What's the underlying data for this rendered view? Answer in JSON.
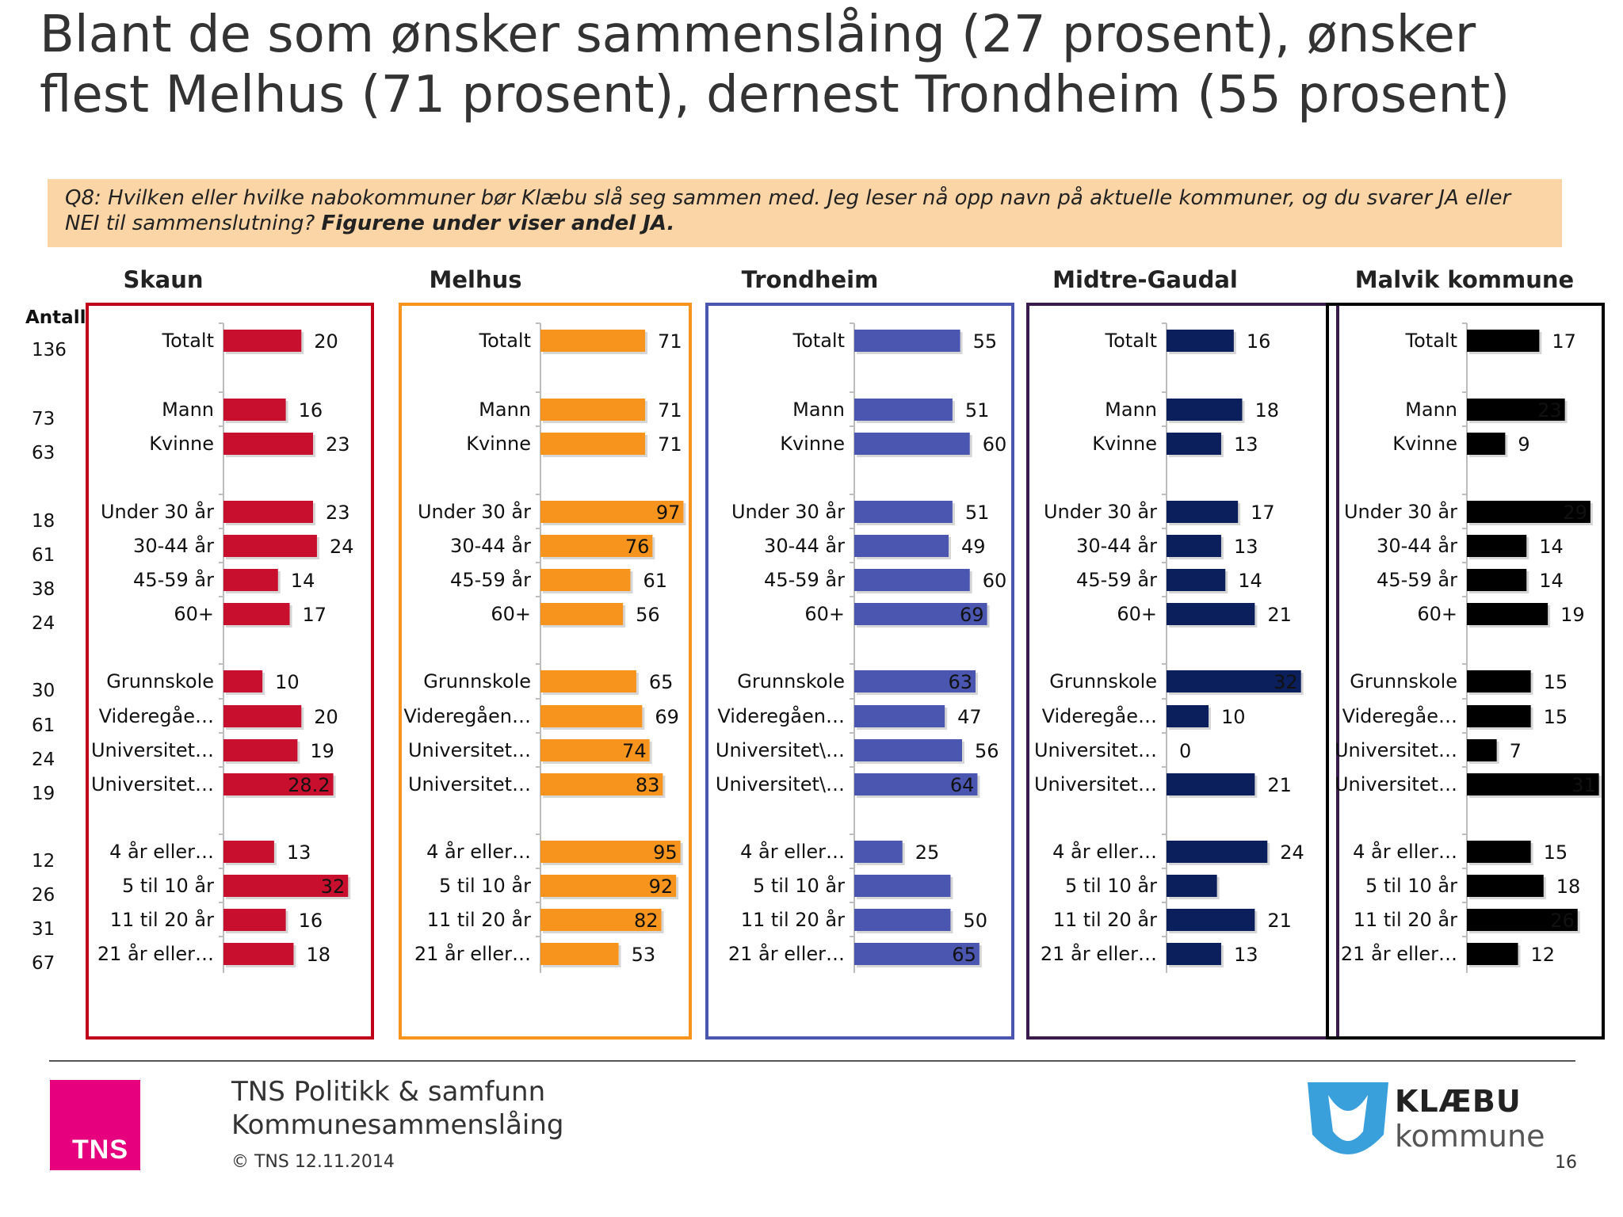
{
  "title": {
    "line1": "Blant de som ønsker sammenslåing (27 prosent), ønsker",
    "line2": "flest Melhus (71 prosent), dernest Trondheim (55 prosent)"
  },
  "question": {
    "text": "Q8: Hvilken eller hvilke nabokommuner bør Klæbu slå seg sammen med. Jeg leser nå opp navn på aktuelle kommuner, og du svarer JA eller NEI til sammenslutning? ",
    "emphasis": "Figurene under viser andel JA."
  },
  "antall_label": "Antall",
  "counts": [
    "136",
    "73",
    "63",
    "18",
    "61",
    "38",
    "24",
    "30",
    "61",
    "24",
    "19",
    "12",
    "26",
    "31",
    "67"
  ],
  "chart_data": {
    "type": "bar",
    "orientation": "horizontal",
    "panels": [
      {
        "name": "Skaun",
        "color": "#c8102e",
        "frame_color": "#c00018",
        "text_color": "#111111",
        "inside_text_color": "#ffffff",
        "labels": [
          "Totalt",
          "Mann",
          "Kvinne",
          "Under 30 år",
          "30-44 år",
          "45-59 år",
          "60+",
          "Grunnskole",
          "Videregåe…",
          "Universitet…",
          "Universitet…",
          "4 år eller…",
          "5 til 10 år",
          "11 til 20 år",
          "21 år eller…"
        ],
        "values": [
          20,
          16,
          23,
          23,
          24,
          14,
          17,
          10,
          20,
          19,
          28.2,
          13,
          32,
          16,
          18
        ],
        "value_labels": [
          "20",
          "16",
          "23",
          "23",
          "24",
          "14",
          "17",
          "10",
          "20",
          "19",
          "28.2",
          "13",
          "32",
          "16",
          "18"
        ],
        "xlim": [
          0,
          35
        ]
      },
      {
        "name": "Melhus",
        "color": "#f7941d",
        "frame_color": "#f7941d",
        "text_color": "#111111",
        "inside_text_color": "#111111",
        "labels": [
          "Totalt",
          "Mann",
          "Kvinne",
          "Under 30 år",
          "30-44 år",
          "45-59 år",
          "60+",
          "Grunnskole",
          "Videregåen…",
          "Universitet…",
          "Universitet…",
          "4 år eller…",
          "5 til 10 år",
          "11 til 20 år",
          "21 år eller…"
        ],
        "values": [
          71,
          71,
          71,
          97,
          76,
          61,
          56,
          65,
          69,
          74,
          83,
          95,
          92,
          82,
          53
        ],
        "value_labels": [
          "71",
          "71",
          "71",
          "97",
          "76",
          "61",
          "56",
          "65",
          "69",
          "74",
          "83",
          "95",
          "92",
          "82",
          "53"
        ],
        "xlim": [
          0,
          100
        ]
      },
      {
        "name": "Trondheim",
        "color": "#4b56b1",
        "frame_color": "#4b56b1",
        "text_color": "#111111",
        "inside_text_color": "#ffffff",
        "labels": [
          "Totalt",
          "Mann",
          "Kvinne",
          "Under 30 år",
          "30-44 år",
          "45-59 år",
          "60+",
          "Grunnskole",
          "Videregåen…",
          "Universitet\\…",
          "Universitet\\…",
          "4 år eller…",
          "5 til 10 år",
          "11 til 20 år",
          "21 år eller…"
        ],
        "values": [
          55,
          51,
          60,
          51,
          49,
          60,
          69,
          63,
          47,
          56,
          64,
          25,
          50,
          50,
          65
        ],
        "value_labels": [
          "55",
          "51",
          "60",
          "51",
          "49",
          "60",
          "69",
          "63",
          "47",
          "56",
          "64",
          "25",
          "",
          "50",
          "65"
        ],
        "xlim": [
          0,
          70
        ]
      },
      {
        "name": "Midtre-Gaudal",
        "color": "#0b1f5c",
        "frame_color": "#3b1a4e",
        "text_color": "#111111",
        "inside_text_color": "#ffffff",
        "labels": [
          "Totalt",
          "Mann",
          "Kvinne",
          "Under 30 år",
          "30-44 år",
          "45-59 år",
          "60+",
          "Grunnskole",
          "Videregåe…",
          "Universitet…",
          "Universitet…",
          "4 år eller…",
          "5 til 10 år",
          "11 til 20 år",
          "21 år eller…"
        ],
        "values": [
          16,
          18,
          13,
          17,
          13,
          14,
          21,
          32,
          10,
          0,
          21,
          24,
          12,
          21,
          13
        ],
        "value_labels": [
          "16",
          "18",
          "13",
          "17",
          "13",
          "14",
          "21",
          "32",
          "10",
          "0",
          "21",
          "24",
          "",
          "21",
          "13"
        ],
        "xlim": [
          0,
          33
        ]
      },
      {
        "name": "Malvik kommune",
        "color": "#000000",
        "frame_color": "#000000",
        "text_color": "#111111",
        "inside_text_color": "#ffffff",
        "labels": [
          "Totalt",
          "Mann",
          "Kvinne",
          "Under 30 år",
          "30-44 år",
          "45-59 år",
          "60+",
          "Grunnskole",
          "Videregåe…",
          "Universitet…",
          "Universitet…",
          "4 år eller…",
          "5 til 10 år",
          "11 til 20 år",
          "21 år eller…"
        ],
        "values": [
          17,
          23,
          9,
          29,
          14,
          14,
          19,
          15,
          15,
          7,
          31,
          15,
          18,
          26,
          12
        ],
        "value_labels": [
          "17",
          "23",
          "9",
          "29",
          "14",
          "14",
          "19",
          "15",
          "15",
          "7",
          "31",
          "15",
          "18",
          "26",
          "12"
        ],
        "xlim": [
          0,
          32
        ]
      }
    ]
  },
  "footer": {
    "tns_logo_text": "TNS",
    "org": "TNS Politikk & samfunn",
    "project": "Kommunesammenslåing",
    "copyright": "© TNS 12.11.2014",
    "klaebu_name": "KLÆBU",
    "klaebu_sub": "kommune",
    "page_number": "16",
    "klaebu_shield_color": "#3aa0dc"
  }
}
